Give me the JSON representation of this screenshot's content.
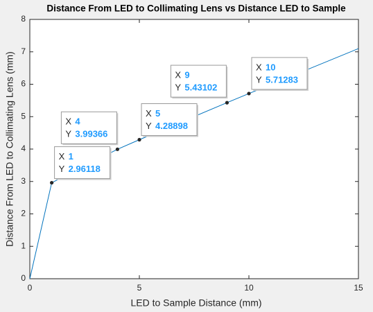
{
  "chart_data": {
    "type": "line",
    "title": "Distance From LED to Collimating Lens vs Distance LED to Sample",
    "xlabel": "LED to Sample Distance (mm)",
    "ylabel": "Distance From LED to Collimating Lens (mm)",
    "x": [
      0,
      1,
      4,
      5,
      9,
      10,
      15
    ],
    "series": [
      {
        "color": "#0072bd",
        "values": [
          0,
          2.96118,
          3.99366,
          4.28898,
          5.43102,
          5.71283,
          7.1
        ]
      }
    ],
    "xlim": [
      0,
      15
    ],
    "xticks": [
      0,
      5,
      10,
      15
    ],
    "ylim": [
      0,
      8
    ],
    "yticks": [
      0,
      1,
      2,
      3,
      4,
      5,
      6,
      7,
      8
    ],
    "datatip_labels": [
      "X",
      "Y"
    ],
    "datatip_indices": [
      1,
      2,
      3,
      4,
      5
    ]
  }
}
